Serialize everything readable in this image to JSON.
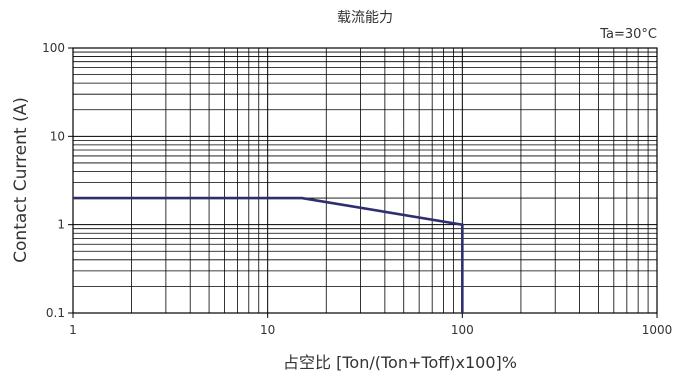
{
  "chart_data": {
    "type": "line",
    "title": "载流能力",
    "annotation": "Ta=30°C",
    "xlabel": "占空比 [Ton/(Ton+Toff)x100]%",
    "ylabel": "Contact Current (A)",
    "x_scale": "log",
    "y_scale": "log",
    "xlim": [
      1,
      1000
    ],
    "ylim": [
      0.1,
      100
    ],
    "x_ticks": [
      1,
      10,
      100,
      1000
    ],
    "x_tick_labels": [
      "1",
      "10",
      "100",
      "1000"
    ],
    "y_ticks": [
      0.1,
      1,
      10,
      100
    ],
    "y_tick_labels": [
      "0.1",
      "1",
      "10",
      "100"
    ],
    "grid": true,
    "series": [
      {
        "color": "#2e2f6e",
        "points": [
          {
            "x": 1,
            "y": 2
          },
          {
            "x": 15,
            "y": 2
          },
          {
            "x": 100,
            "y": 1
          },
          {
            "x": 100,
            "y": 0.1
          }
        ]
      }
    ]
  }
}
